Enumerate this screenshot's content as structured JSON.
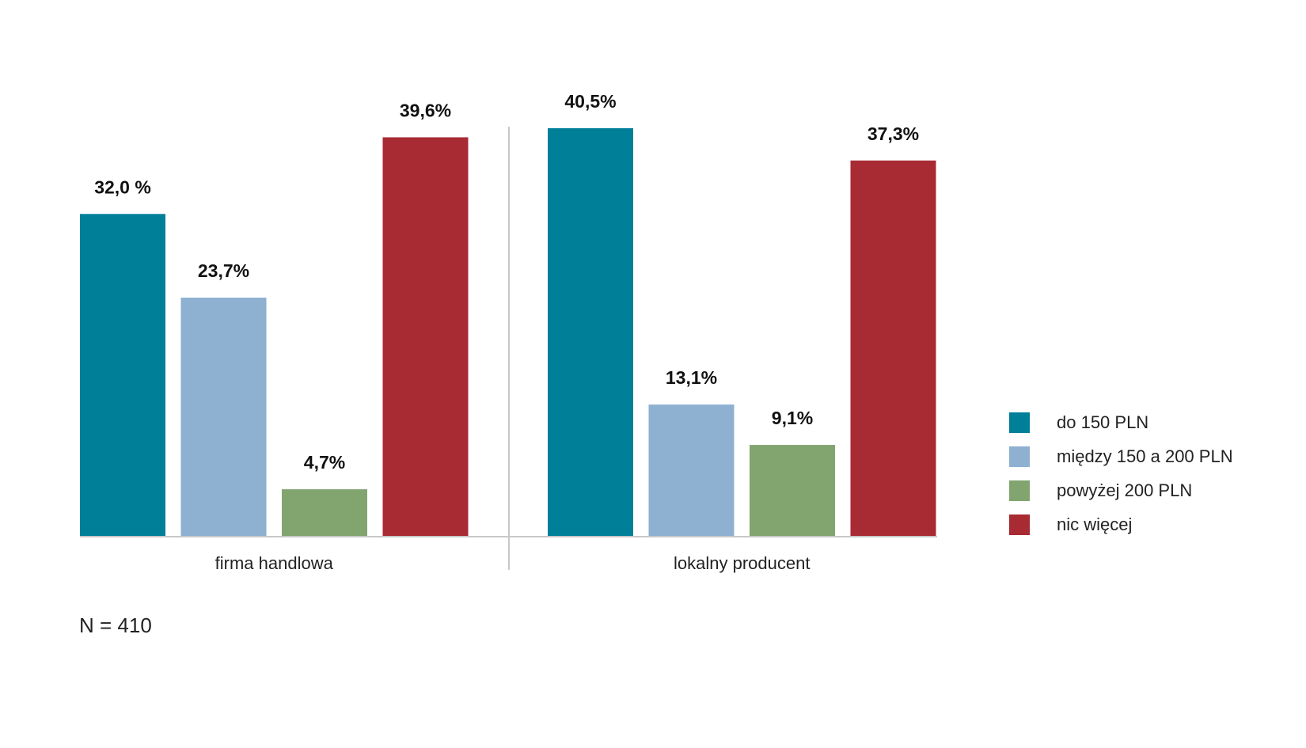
{
  "chart_data": {
    "type": "bar",
    "categories": [
      "firma handlowa",
      "lokalny producent"
    ],
    "series": [
      {
        "name": "do 150 PLN",
        "color": "#007f99",
        "values": [
          32.0,
          40.5
        ],
        "labels": [
          "32,0 %",
          "40,5%"
        ]
      },
      {
        "name": "między 150 a 200 PLN",
        "color": "#8eb0d1",
        "values": [
          23.7,
          13.1
        ],
        "labels": [
          "23,7%",
          "13,1%"
        ]
      },
      {
        "name": "powyżej 200 PLN",
        "color": "#82a46f",
        "values": [
          4.7,
          9.1
        ],
        "labels": [
          "4,7%",
          "9,1%"
        ]
      },
      {
        "name": "nic więcej",
        "color": "#a82a33",
        "values": [
          39.6,
          37.3
        ],
        "labels": [
          "39,6%",
          "37,3%"
        ]
      }
    ],
    "ylim": [
      0,
      40.5
    ],
    "legend_position": "right",
    "grid": false,
    "note": "N = 410"
  }
}
